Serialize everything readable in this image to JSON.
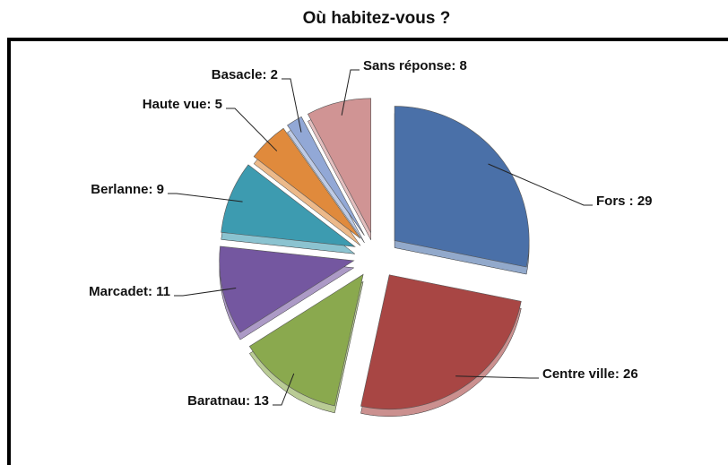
{
  "chart_data": {
    "type": "pie",
    "title": "Où habitez-vous ?",
    "values": [
      29,
      26,
      13,
      11,
      9,
      5,
      2,
      8
    ],
    "value_labels": [
      "Fors : 29",
      "Centre ville: 26",
      "Baratnau: 13",
      "Marcadet: 11",
      "Berlanne: 9",
      "Haute vue: 5",
      "Basacle: 2",
      "Sans réponse: 8"
    ],
    "colors": [
      "#4a70a8",
      "#a84644",
      "#8aa94e",
      "#7457a0",
      "#3d9bb0",
      "#e08a3c",
      "#92a8d6",
      "#d09494"
    ]
  }
}
